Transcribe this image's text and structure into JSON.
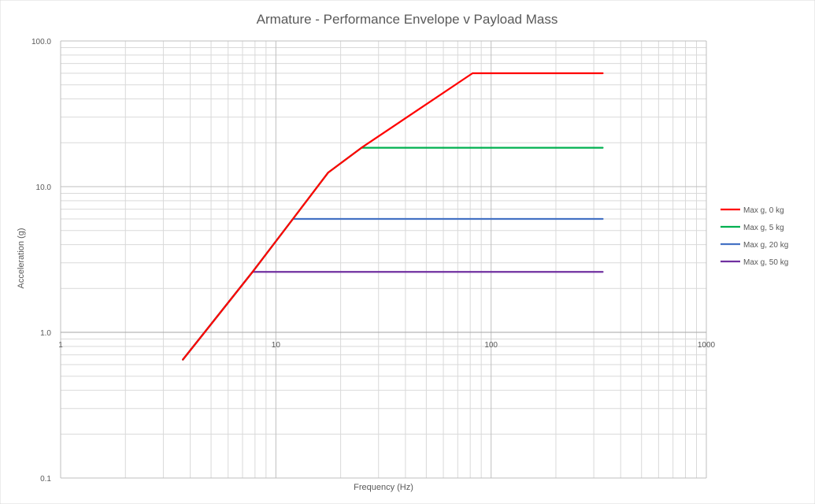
{
  "chart_data": {
    "type": "line",
    "title": "Armature - Performance Envelope v Payload Mass",
    "xlabel": "Frequency (Hz)",
    "ylabel": "Acceleration (g)",
    "x_scale": "log",
    "y_scale": "log",
    "xlim": [
      1,
      1000
    ],
    "ylim": [
      0.1,
      100
    ],
    "x_ticks": [
      "1",
      "10",
      "100",
      "1000"
    ],
    "y_ticks": [
      "0.1",
      "1.0",
      "10.0",
      "100.0"
    ],
    "grid": true,
    "legend_position": "right",
    "series": [
      {
        "name": "Max g, 0 kg",
        "color": "#ff0000",
        "x": [
          3.7,
          7.8,
          12,
          17.5,
          25,
          82,
          330
        ],
        "y": [
          0.65,
          2.6,
          6.0,
          12.5,
          18.5,
          60,
          60
        ]
      },
      {
        "name": "Max g, 5 kg",
        "color": "#00b050",
        "x": [
          3.7,
          7.8,
          12,
          17.5,
          25,
          330
        ],
        "y": [
          0.65,
          2.6,
          6.0,
          12.5,
          18.5,
          18.5
        ]
      },
      {
        "name": "Max g, 20 kg",
        "color": "#4472c4",
        "x": [
          3.7,
          7.8,
          12,
          330
        ],
        "y": [
          0.65,
          2.6,
          6.0,
          6.0
        ]
      },
      {
        "name": "Max g, 50 kg",
        "color": "#7030a0",
        "x": [
          3.7,
          7.8,
          330
        ],
        "y": [
          0.65,
          2.6,
          2.6
        ]
      }
    ]
  }
}
